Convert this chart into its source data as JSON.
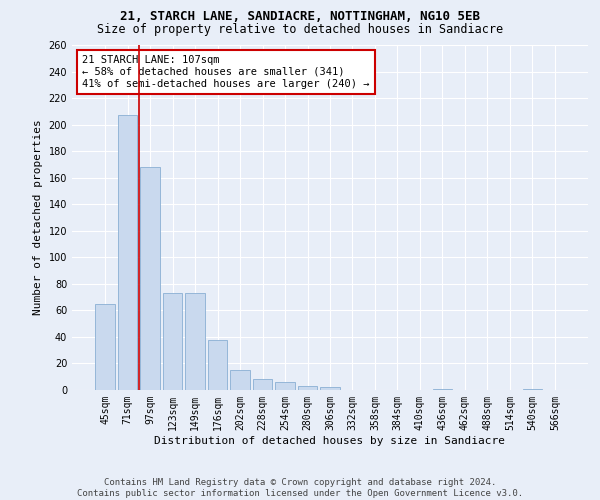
{
  "title1": "21, STARCH LANE, SANDIACRE, NOTTINGHAM, NG10 5EB",
  "title2": "Size of property relative to detached houses in Sandiacre",
  "xlabel": "Distribution of detached houses by size in Sandiacre",
  "ylabel": "Number of detached properties",
  "categories": [
    "45sqm",
    "71sqm",
    "97sqm",
    "123sqm",
    "149sqm",
    "176sqm",
    "202sqm",
    "228sqm",
    "254sqm",
    "280sqm",
    "306sqm",
    "332sqm",
    "358sqm",
    "384sqm",
    "410sqm",
    "436sqm",
    "462sqm",
    "488sqm",
    "514sqm",
    "540sqm",
    "566sqm"
  ],
  "values": [
    65,
    207,
    168,
    73,
    73,
    38,
    15,
    8,
    6,
    3,
    2,
    0,
    0,
    0,
    0,
    1,
    0,
    0,
    0,
    1,
    0
  ],
  "bar_color": "#c9d9ee",
  "bar_edge_color": "#8aafd4",
  "vline_x": 1.5,
  "vline_color": "#cc0000",
  "annotation_text": "21 STARCH LANE: 107sqm\n← 58% of detached houses are smaller (341)\n41% of semi-detached houses are larger (240) →",
  "annotation_box_color": "white",
  "annotation_box_edge": "#cc0000",
  "ylim": [
    0,
    260
  ],
  "yticks": [
    0,
    20,
    40,
    60,
    80,
    100,
    120,
    140,
    160,
    180,
    200,
    220,
    240,
    260
  ],
  "bg_color": "#e8eef8",
  "grid_color": "white",
  "footnote": "Contains HM Land Registry data © Crown copyright and database right 2024.\nContains public sector information licensed under the Open Government Licence v3.0.",
  "title1_fontsize": 9,
  "title2_fontsize": 8.5,
  "xlabel_fontsize": 8,
  "ylabel_fontsize": 8,
  "tick_fontsize": 7,
  "annot_fontsize": 7.5,
  "footnote_fontsize": 6.5
}
